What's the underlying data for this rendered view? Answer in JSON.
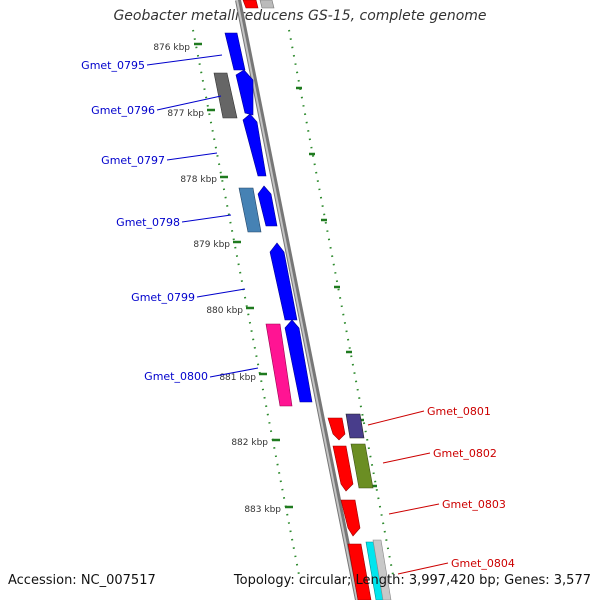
{
  "title": "Geobacter metallireducens GS-15, complete genome",
  "footer": {
    "accession": "Accession: NC_007517",
    "summary": "Topology: circular; Length: 3,997,420 bp; Genes: 3,577"
  },
  "colors": {
    "backbone": "#8a8a8a",
    "tick_dots": "#2e8b2e",
    "left_label": "#0000cc",
    "right_label": "#cc0000"
  },
  "scale_ticks": [
    "876 kbp",
    "877 kbp",
    "878 kbp",
    "879 kbp",
    "880 kbp",
    "881 kbp",
    "882 kbp",
    "883 kbp"
  ],
  "gene_labels_left": [
    "Gmet_0795",
    "Gmet_0796",
    "Gmet_0797",
    "Gmet_0798",
    "Gmet_0799",
    "Gmet_0800"
  ],
  "gene_labels_right": [
    "Gmet_0801",
    "Gmet_0802",
    "Gmet_0803",
    "Gmet_0804"
  ]
}
